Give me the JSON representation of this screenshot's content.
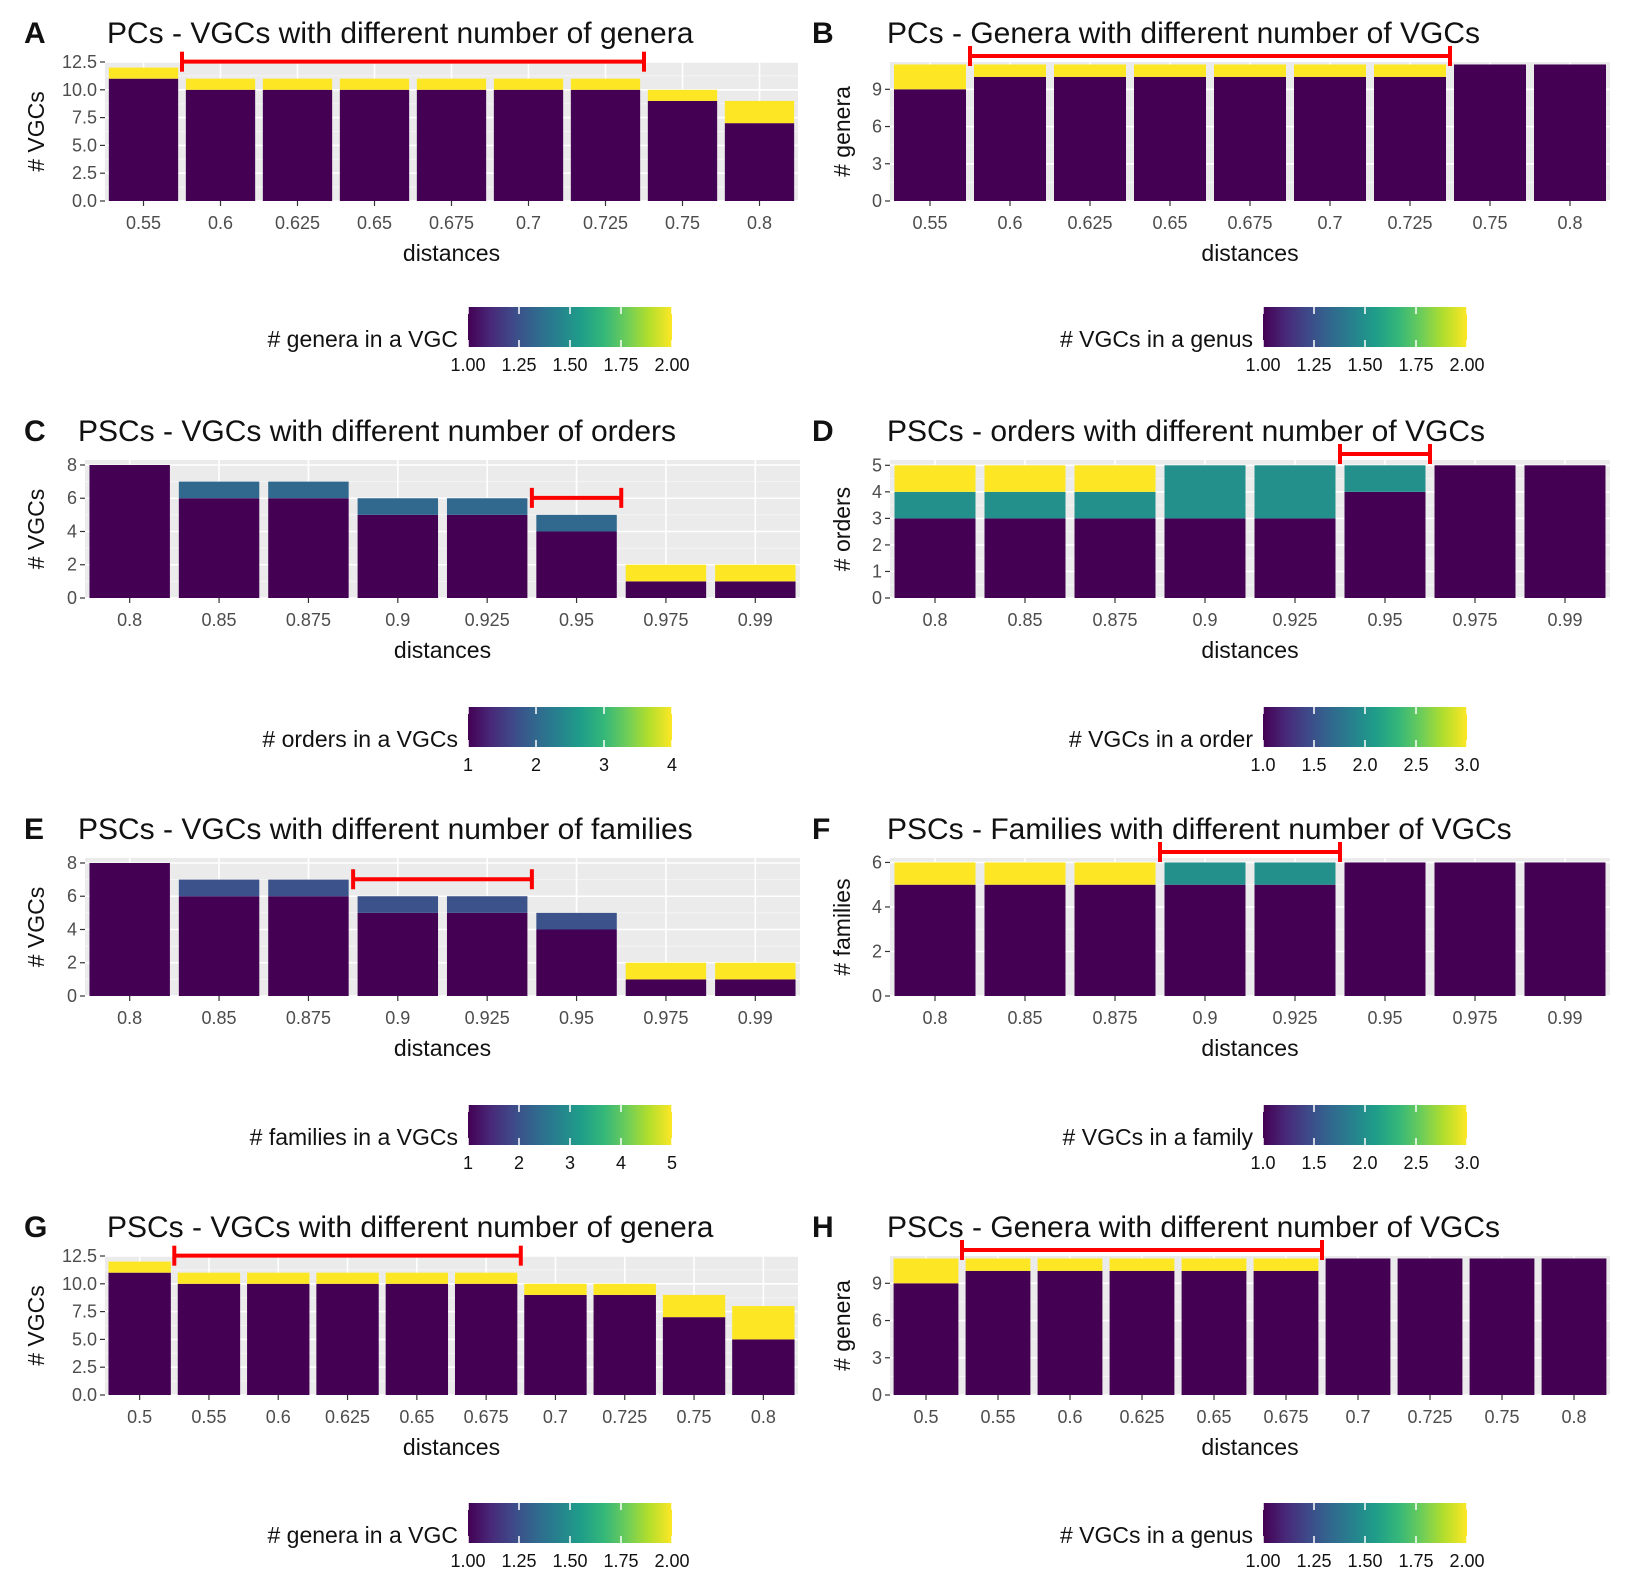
{
  "colors": {
    "panel_bg": "#EBEBEB",
    "grid_major": "#FFFFFF",
    "bracket": "#FF0000",
    "viridis": [
      "#440154",
      "#482878",
      "#3E4A89",
      "#31688E",
      "#26828E",
      "#1F9E89",
      "#35B779",
      "#6DCD59",
      "#B4DE2C",
      "#FDE725"
    ]
  },
  "chart_data": [
    {
      "id": "A",
      "letter": "A",
      "type": "bar",
      "stacked": true,
      "title": "PCs - VGCs with different number of genera",
      "xlabel": "distances",
      "ylabel": "# VGCs",
      "categories": [
        "0.55",
        "0.6",
        "0.625",
        "0.65",
        "0.675",
        "0.7",
        "0.725",
        "0.75",
        "0.8"
      ],
      "ylim": [
        0,
        12.5
      ],
      "yticks": [
        0,
        2.5,
        5,
        7.5,
        10,
        12.5
      ],
      "ytick_labels": [
        "0.0",
        "2.5",
        "5.0",
        "7.5",
        "10.0",
        "12.5"
      ],
      "series": [
        {
          "name": "1",
          "fill_value": 1,
          "values": [
            11,
            10,
            10,
            10,
            10,
            10,
            10,
            9,
            7
          ]
        },
        {
          "name": "2",
          "fill_value": 2,
          "values": [
            1,
            1,
            1,
            1,
            1,
            1,
            1,
            1,
            2
          ]
        }
      ],
      "bracket": {
        "from": "0.6",
        "to": "0.725"
      },
      "legend": {
        "title": "# genera in a VGC",
        "min": 1,
        "max": 2,
        "ticks": [
          1,
          1.25,
          1.5,
          1.75,
          2
        ],
        "tick_labels": [
          "1.00",
          "1.25",
          "1.50",
          "1.75",
          "2.00"
        ]
      }
    },
    {
      "id": "B",
      "letter": "B",
      "type": "bar",
      "stacked": true,
      "title": "PCs - Genera with different number of VGCs",
      "xlabel": "distances",
      "ylabel": "# genera",
      "categories": [
        "0.55",
        "0.6",
        "0.625",
        "0.65",
        "0.675",
        "0.7",
        "0.725",
        "0.75",
        "0.8"
      ],
      "ylim": [
        0,
        11.2
      ],
      "yticks": [
        0,
        3,
        6,
        9
      ],
      "ytick_labels": [
        "0",
        "3",
        "6",
        "9"
      ],
      "series": [
        {
          "name": "1",
          "fill_value": 1,
          "values": [
            9,
            10,
            10,
            10,
            10,
            10,
            10,
            11,
            11
          ]
        },
        {
          "name": "2",
          "fill_value": 2,
          "values": [
            2,
            1,
            1,
            1,
            1,
            1,
            1,
            0,
            0
          ]
        }
      ],
      "bracket": {
        "from": "0.6",
        "to": "0.725"
      },
      "legend": {
        "title": "# VGCs in a genus",
        "min": 1,
        "max": 2,
        "ticks": [
          1,
          1.25,
          1.5,
          1.75,
          2
        ],
        "tick_labels": [
          "1.00",
          "1.25",
          "1.50",
          "1.75",
          "2.00"
        ]
      }
    },
    {
      "id": "C",
      "letter": "C",
      "type": "bar",
      "stacked": true,
      "title": "PSCs - VGCs with different number of orders",
      "xlabel": "distances",
      "ylabel": "# VGCs",
      "categories": [
        "0.8",
        "0.85",
        "0.875",
        "0.9",
        "0.925",
        "0.95",
        "0.975",
        "0.99"
      ],
      "ylim": [
        0,
        8.3
      ],
      "yticks": [
        0,
        2,
        4,
        6,
        8
      ],
      "ytick_labels": [
        "0",
        "2",
        "4",
        "6",
        "8"
      ],
      "series": [
        {
          "name": "1",
          "fill_value": 1,
          "values": [
            8,
            6,
            6,
            5,
            5,
            4,
            1,
            1
          ]
        },
        {
          "name": "2",
          "fill_value": 2,
          "values": [
            0,
            1,
            1,
            1,
            1,
            1,
            0,
            0
          ]
        },
        {
          "name": "4",
          "fill_value": 4,
          "values": [
            0,
            0,
            0,
            0,
            0,
            0,
            1,
            1
          ]
        }
      ],
      "bracket": {
        "from": "0.95",
        "to": "0.95"
      },
      "legend": {
        "title": "# orders in a VGCs",
        "min": 1,
        "max": 4,
        "ticks": [
          1,
          2,
          3,
          4
        ],
        "tick_labels": [
          "1",
          "2",
          "3",
          "4"
        ]
      }
    },
    {
      "id": "D",
      "letter": "D",
      "type": "bar",
      "stacked": true,
      "title": "PSCs - orders with different number of VGCs",
      "xlabel": "distances",
      "ylabel": "# orders",
      "categories": [
        "0.8",
        "0.85",
        "0.875",
        "0.9",
        "0.925",
        "0.95",
        "0.975",
        "0.99"
      ],
      "ylim": [
        0,
        5.2
      ],
      "yticks": [
        0,
        1,
        2,
        3,
        4,
        5
      ],
      "ytick_labels": [
        "0",
        "1",
        "2",
        "3",
        "4",
        "5"
      ],
      "series": [
        {
          "name": "1",
          "fill_value": 1,
          "values": [
            3,
            3,
            3,
            3,
            3,
            4,
            5,
            5
          ]
        },
        {
          "name": "2",
          "fill_value": 2,
          "values": [
            1,
            1,
            1,
            2,
            2,
            1,
            0,
            0
          ]
        },
        {
          "name": "3",
          "fill_value": 3,
          "values": [
            1,
            1,
            1,
            0,
            0,
            0,
            0,
            0
          ]
        }
      ],
      "bracket": {
        "from": "0.95",
        "to": "0.95"
      },
      "legend": {
        "title": "# VGCs in a order",
        "min": 1,
        "max": 3,
        "ticks": [
          1,
          1.5,
          2,
          2.5,
          3
        ],
        "tick_labels": [
          "1.0",
          "1.5",
          "2.0",
          "2.5",
          "3.0"
        ]
      }
    },
    {
      "id": "E",
      "letter": "E",
      "type": "bar",
      "stacked": true,
      "title": "PSCs - VGCs with different number of families",
      "xlabel": "distances",
      "ylabel": "# VGCs",
      "categories": [
        "0.8",
        "0.85",
        "0.875",
        "0.9",
        "0.925",
        "0.95",
        "0.975",
        "0.99"
      ],
      "ylim": [
        0,
        8.3
      ],
      "yticks": [
        0,
        2,
        4,
        6,
        8
      ],
      "ytick_labels": [
        "0",
        "2",
        "4",
        "6",
        "8"
      ],
      "series": [
        {
          "name": "1",
          "fill_value": 1,
          "values": [
            8,
            6,
            6,
            5,
            5,
            4,
            1,
            1
          ]
        },
        {
          "name": "2",
          "fill_value": 2,
          "values": [
            0,
            1,
            1,
            1,
            1,
            1,
            0,
            0
          ]
        },
        {
          "name": "5",
          "fill_value": 5,
          "values": [
            0,
            0,
            0,
            0,
            0,
            0,
            1,
            1
          ]
        }
      ],
      "bracket": {
        "from": "0.9",
        "to": "0.925"
      },
      "legend": {
        "title": "# families in a VGCs",
        "min": 1,
        "max": 5,
        "ticks": [
          1,
          2,
          3,
          4,
          5
        ],
        "tick_labels": [
          "1",
          "2",
          "3",
          "4",
          "5"
        ]
      }
    },
    {
      "id": "F",
      "letter": "F",
      "type": "bar",
      "stacked": true,
      "title": "PSCs - Families with different number of VGCs",
      "xlabel": "distances",
      "ylabel": "# families",
      "categories": [
        "0.8",
        "0.85",
        "0.875",
        "0.9",
        "0.925",
        "0.95",
        "0.975",
        "0.99"
      ],
      "ylim": [
        0,
        6.2
      ],
      "yticks": [
        0,
        2,
        4,
        6
      ],
      "ytick_labels": [
        "0",
        "2",
        "4",
        "6"
      ],
      "series": [
        {
          "name": "1",
          "fill_value": 1,
          "values": [
            5,
            5,
            5,
            5,
            5,
            6,
            6,
            6
          ]
        },
        {
          "name": "2",
          "fill_value": 2,
          "values": [
            0,
            0,
            0,
            1,
            1,
            0,
            0,
            0
          ]
        },
        {
          "name": "3",
          "fill_value": 3,
          "values": [
            1,
            1,
            1,
            0,
            0,
            0,
            0,
            0
          ]
        }
      ],
      "bracket": {
        "from": "0.9",
        "to": "0.925"
      },
      "legend": {
        "title": "# VGCs in a family",
        "min": 1,
        "max": 3,
        "ticks": [
          1,
          1.5,
          2,
          2.5,
          3
        ],
        "tick_labels": [
          "1.0",
          "1.5",
          "2.0",
          "2.5",
          "3.0"
        ]
      }
    },
    {
      "id": "G",
      "letter": "G",
      "type": "bar",
      "stacked": true,
      "title": "PSCs - VGCs with different number of genera",
      "xlabel": "distances",
      "ylabel": "# VGCs",
      "categories": [
        "0.5",
        "0.55",
        "0.6",
        "0.625",
        "0.65",
        "0.675",
        "0.7",
        "0.725",
        "0.75",
        "0.8"
      ],
      "ylim": [
        0,
        12.5
      ],
      "yticks": [
        0,
        2.5,
        5,
        7.5,
        10,
        12.5
      ],
      "ytick_labels": [
        "0.0",
        "2.5",
        "5.0",
        "7.5",
        "10.0",
        "12.5"
      ],
      "series": [
        {
          "name": "1",
          "fill_value": 1,
          "values": [
            11,
            10,
            10,
            10,
            10,
            10,
            9,
            9,
            7,
            5
          ]
        },
        {
          "name": "2",
          "fill_value": 2,
          "values": [
            1,
            1,
            1,
            1,
            1,
            1,
            1,
            1,
            2,
            3
          ]
        }
      ],
      "bracket": {
        "from": "0.55",
        "to": "0.675"
      },
      "legend": {
        "title": "# genera in a VGC",
        "min": 1,
        "max": 2,
        "ticks": [
          1,
          1.25,
          1.5,
          1.75,
          2
        ],
        "tick_labels": [
          "1.00",
          "1.25",
          "1.50",
          "1.75",
          "2.00"
        ]
      }
    },
    {
      "id": "H",
      "letter": "H",
      "type": "bar",
      "stacked": true,
      "title": "PSCs - Genera with different number of VGCs",
      "xlabel": "distances",
      "ylabel": "# genera",
      "categories": [
        "0.5",
        "0.55",
        "0.6",
        "0.625",
        "0.65",
        "0.675",
        "0.7",
        "0.725",
        "0.75",
        "0.8"
      ],
      "ylim": [
        0,
        11.2
      ],
      "yticks": [
        0,
        3,
        6,
        9
      ],
      "ytick_labels": [
        "0",
        "3",
        "6",
        "9"
      ],
      "series": [
        {
          "name": "1",
          "fill_value": 1,
          "values": [
            9,
            10,
            10,
            10,
            10,
            10,
            11,
            11,
            11,
            11
          ]
        },
        {
          "name": "2",
          "fill_value": 2,
          "values": [
            2,
            1,
            1,
            1,
            1,
            1,
            0,
            0,
            0,
            0
          ]
        }
      ],
      "bracket": {
        "from": "0.55",
        "to": "0.675"
      },
      "legend": {
        "title": "# VGCs in a genus",
        "min": 1,
        "max": 2,
        "ticks": [
          1,
          1.25,
          1.5,
          1.75,
          2
        ],
        "tick_labels": [
          "1.00",
          "1.25",
          "1.50",
          "1.75",
          "2.00"
        ]
      }
    }
  ]
}
